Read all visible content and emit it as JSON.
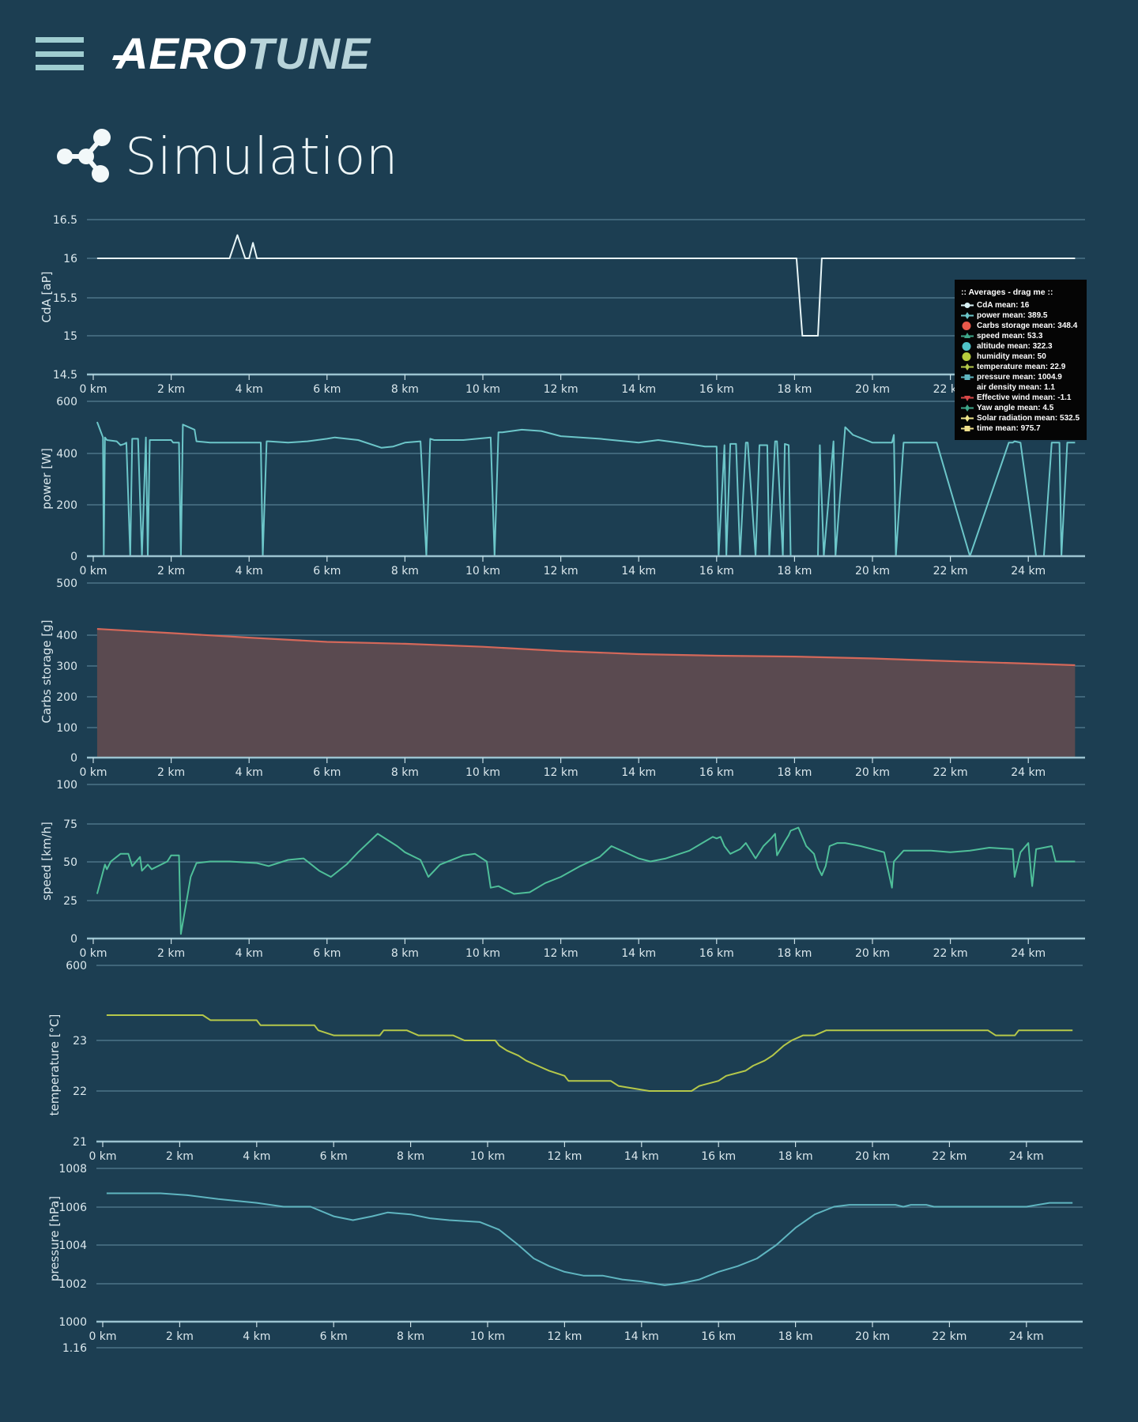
{
  "header": {
    "menu_icon": "hamburger-menu-icon",
    "logo_part1": "AERO",
    "logo_part2": "TUNE"
  },
  "page": {
    "title": "Simulation",
    "title_icon": "share-nodes-icon"
  },
  "colors": {
    "background": "#1c3e52",
    "grid": "#4d7487",
    "cda": "#e8f6f8",
    "power": "#6cc6c9",
    "carbs_line": "#d4685a",
    "carbs_fill": "#5a4a50",
    "speed": "#4fbf99",
    "temperature": "#b5c84a",
    "pressure": "#5fb5c0"
  },
  "legend": {
    "title": ":: Averages - drag me ::",
    "items": [
      {
        "label": "CdA mean: 16",
        "symbol": "line-circle",
        "color": "#d8f0f4"
      },
      {
        "label": "power mean: 389.5",
        "symbol": "line-diamond",
        "color": "#6cc6c9"
      },
      {
        "label": "Carbs storage mean: 348.4",
        "symbol": "circle",
        "color": "#e8584a"
      },
      {
        "label": "speed mean: 53.3",
        "symbol": "line-triangle",
        "color": "#3fa88a"
      },
      {
        "label": "altitude mean: 322.3",
        "symbol": "circle",
        "color": "#4fc3c8"
      },
      {
        "label": "humidity mean: 50",
        "symbol": "circle",
        "color": "#b6cc3c"
      },
      {
        "label": "temperature mean: 22.9",
        "symbol": "line-diamond",
        "color": "#b5c84a"
      },
      {
        "label": "pressure mean: 1004.9",
        "symbol": "line-square",
        "color": "#5fb5c0"
      },
      {
        "label": "air density mean: 1.1",
        "symbol": "none",
        "color": "#000000"
      },
      {
        "label": "Effective wind mean: -1.1",
        "symbol": "line-triangle-down",
        "color": "#d84848"
      },
      {
        "label": "Yaw angle mean: 4.5",
        "symbol": "line-diamond",
        "color": "#3fa88a"
      },
      {
        "label": "Solar radiation mean: 532.5",
        "symbol": "line-diamond",
        "color": "#f0e68c"
      },
      {
        "label": "time mean: 975.7",
        "symbol": "line-square",
        "color": "#f0e08c"
      }
    ]
  },
  "chart_data": [
    {
      "id": "cda",
      "type": "line",
      "ylabel": "CdA [aP]",
      "xlabel": "",
      "xticks": [
        "0 km",
        "2 km",
        "4 km",
        "6 km",
        "8 km",
        "10 km",
        "12 km",
        "14 km",
        "16 km",
        "18 km",
        "20 km",
        "22 km",
        "24 km"
      ],
      "yticks": [
        "16.5",
        "16",
        "15.5",
        "15",
        "14.5"
      ],
      "ylim": [
        14.5,
        16.5
      ],
      "x": [
        0.1,
        3.5,
        3.7,
        3.9,
        4.0,
        4.1,
        4.2,
        18.05,
        18.2,
        18.6,
        18.7,
        25.2
      ],
      "values": [
        16,
        16,
        16.3,
        16,
        16,
        16.2,
        16,
        16,
        15,
        15,
        16,
        16
      ]
    },
    {
      "id": "power",
      "type": "line",
      "ylabel": "power [W]",
      "xticks": [
        "0 km",
        "2 km",
        "4 km",
        "6 km",
        "8 km",
        "10 km",
        "12 km",
        "14 km",
        "16 km",
        "18 km",
        "20 km",
        "22 km",
        "24 km"
      ],
      "yticks": [
        "600",
        "400",
        "200",
        "0"
      ],
      "ylim": [
        0,
        600
      ],
      "x": [
        0.1,
        0.25,
        0.27,
        0.3,
        0.35,
        0.6,
        0.7,
        0.8,
        0.85,
        0.95,
        1.0,
        1.15,
        1.25,
        1.35,
        1.4,
        1.45,
        2.0,
        2.05,
        2.2,
        2.25,
        2.3,
        2.6,
        2.65,
        3.0,
        4.3,
        4.35,
        4.45,
        4.5,
        5.0,
        5.5,
        6.0,
        6.2,
        6.8,
        7.4,
        7.7,
        8.0,
        8.4,
        8.55,
        8.65,
        8.75,
        9.5,
        10.2,
        10.3,
        10.4,
        10.5,
        11.0,
        11.5,
        12.0,
        12.5,
        13.0,
        14.0,
        14.5,
        15.0,
        15.7,
        16.0,
        16.05,
        16.2,
        16.25,
        16.35,
        16.5,
        16.6,
        16.75,
        16.8,
        17.0,
        17.1,
        17.3,
        17.35,
        17.5,
        17.55,
        17.7,
        17.75,
        17.85,
        17.9,
        18.0,
        18.05,
        18.2,
        18.6,
        18.65,
        18.75,
        19.0,
        19.05,
        19.3,
        19.5,
        20.0,
        20.5,
        20.55,
        20.6,
        20.8,
        21.5,
        21.6,
        21.65,
        22.5,
        23.5,
        23.6,
        23.65,
        23.8,
        24.2,
        24.25,
        24.4,
        24.6,
        24.8,
        24.85,
        25.0,
        25.2
      ],
      "values": [
        520,
        460,
        0,
        460,
        450,
        445,
        430,
        435,
        440,
        0,
        455,
        455,
        0,
        460,
        0,
        450,
        450,
        440,
        440,
        0,
        510,
        490,
        445,
        440,
        440,
        0,
        445,
        445,
        440,
        445,
        455,
        460,
        450,
        420,
        425,
        440,
        445,
        0,
        455,
        450,
        450,
        460,
        0,
        480,
        480,
        490,
        485,
        465,
        460,
        455,
        440,
        450,
        440,
        425,
        425,
        0,
        430,
        0,
        435,
        435,
        0,
        440,
        440,
        0,
        430,
        430,
        0,
        445,
        445,
        0,
        435,
        430,
        0,
        0,
        0,
        0,
        0,
        430,
        0,
        445,
        0,
        500,
        470,
        440,
        440,
        470,
        0,
        440,
        440,
        440,
        440,
        0,
        440,
        440,
        445,
        440,
        0,
        0,
        0,
        440,
        440,
        0,
        440,
        440
      ],
      "note": "frequent drops to 0 W throughout"
    },
    {
      "id": "carbs",
      "type": "area",
      "ylabel": "Carbs storage [g]",
      "xticks": [
        "0 km",
        "2 km",
        "4 km",
        "6 km",
        "8 km",
        "10 km",
        "12 km",
        "14 km",
        "16 km",
        "18 km",
        "20 km",
        "22 km",
        "24 km"
      ],
      "yticks": [
        "500",
        "400",
        "300",
        "200",
        "100",
        "0"
      ],
      "ylim": [
        0,
        500
      ],
      "x": [
        0.1,
        2,
        4,
        6,
        8,
        10,
        12,
        14,
        16,
        18,
        20,
        22,
        24,
        25.2
      ],
      "values": [
        412,
        404,
        392,
        378,
        372,
        362,
        348,
        338,
        333,
        330,
        324,
        315,
        307,
        302
      ]
    },
    {
      "id": "speed",
      "type": "line",
      "ylabel": "speed [km/h]",
      "xticks": [
        "0 km",
        "2 km",
        "4 km",
        "6 km",
        "8 km",
        "10 km",
        "12 km",
        "14 km",
        "16 km",
        "18 km",
        "20 km",
        "22 km",
        "24 km"
      ],
      "yticks": [
        "100",
        "75",
        "50",
        "25",
        "0"
      ],
      "ylim": [
        0,
        100
      ],
      "x": [
        0.1,
        0.3,
        0.35,
        0.45,
        0.7,
        0.9,
        1.0,
        1.2,
        1.25,
        1.4,
        1.5,
        1.9,
        2.0,
        2.2,
        2.25,
        2.5,
        2.65,
        3.0,
        3.5,
        4.2,
        4.5,
        5.0,
        5.4,
        5.8,
        6.1,
        6.5,
        6.8,
        7.3,
        7.8,
        8.0,
        8.4,
        8.6,
        8.9,
        9.5,
        9.8,
        10.1,
        10.2,
        10.4,
        10.8,
        11.2,
        11.6,
        12.0,
        12.5,
        13.0,
        13.3,
        14.0,
        14.3,
        14.7,
        15.3,
        15.9,
        16.0,
        16.1,
        16.2,
        16.35,
        16.6,
        16.75,
        17.0,
        17.2,
        17.4,
        17.5,
        17.55,
        17.75,
        17.85,
        17.9,
        18.1,
        18.3,
        18.5,
        18.6,
        18.7,
        18.8,
        18.9,
        19.1,
        19.3,
        19.7,
        20.3,
        20.5,
        20.55,
        20.8,
        21.5,
        22.0,
        22.5,
        23.0,
        23.6,
        23.65,
        23.8,
        24.0,
        24.1,
        24.2,
        24.6,
        24.7,
        24.9,
        24.95,
        25.2
      ],
      "values": [
        29,
        48,
        45,
        50,
        55,
        55,
        47,
        53,
        44,
        48,
        45,
        50,
        54,
        54,
        3,
        40,
        49,
        50,
        50,
        49,
        47,
        51,
        52,
        44,
        40,
        48,
        56,
        68,
        60,
        56,
        51,
        40,
        48,
        54,
        55,
        50,
        33,
        34,
        29,
        30,
        36,
        40,
        47,
        53,
        60,
        52,
        50,
        52,
        57,
        66,
        65,
        66,
        60,
        55,
        58,
        62,
        52,
        60,
        65,
        68,
        54,
        63,
        67,
        70,
        72,
        60,
        55,
        46,
        41,
        47,
        60,
        62,
        62,
        60,
        56,
        33,
        50,
        57,
        57,
        56,
        57,
        59,
        58,
        40,
        56,
        62,
        34,
        58,
        60,
        50,
        50,
        50,
        50
      ]
    },
    {
      "id": "temperature",
      "type": "line",
      "ylabel": "temperature [°C]",
      "xticks": [
        "0 km",
        "2 km",
        "4 km",
        "6 km",
        "8 km",
        "10 km",
        "12 km",
        "14 km",
        "16 km",
        "18 km",
        "20 km",
        "22 km",
        "24 km"
      ],
      "yticks": [
        "600",
        "23",
        "22",
        "21"
      ],
      "ylim": [
        21,
        24.5
      ],
      "x": [
        0.1,
        2.6,
        2.8,
        4.0,
        4.1,
        5.5,
        5.6,
        6.0,
        7.2,
        7.3,
        7.9,
        8.2,
        9.1,
        9.4,
        10.2,
        10.3,
        10.5,
        10.8,
        11.0,
        11.3,
        11.6,
        12.0,
        12.1,
        13.2,
        13.4,
        14.2,
        14.3,
        15.3,
        15.5,
        16.0,
        16.2,
        16.7,
        16.9,
        17.2,
        17.4,
        17.7,
        17.9,
        18.2,
        18.5,
        18.8,
        19.0,
        23.0,
        23.2,
        23.7,
        23.8,
        25.2
      ],
      "values": [
        23.5,
        23.5,
        23.4,
        23.4,
        23.3,
        23.3,
        23.2,
        23.1,
        23.1,
        23.2,
        23.2,
        23.1,
        23.1,
        23.0,
        23.0,
        22.9,
        22.8,
        22.7,
        22.6,
        22.5,
        22.4,
        22.3,
        22.2,
        22.2,
        22.1,
        22.0,
        22.0,
        22.0,
        22.1,
        22.2,
        22.3,
        22.4,
        22.5,
        22.6,
        22.7,
        22.9,
        23.0,
        23.1,
        23.1,
        23.2,
        23.2,
        23.2,
        23.1,
        23.1,
        23.2,
        23.2
      ]
    },
    {
      "id": "pressure",
      "type": "line",
      "ylabel": "pressure [hPa]",
      "xticks": [
        "0 km",
        "2 km",
        "4 km",
        "6 km",
        "8 km",
        "10 km",
        "12 km",
        "14 km",
        "16 km",
        "18 km",
        "20 km",
        "22 km",
        "24 km"
      ],
      "yticks": [
        "1008",
        "1006",
        "1004",
        "1002",
        "1000",
        "1.16"
      ],
      "ylim": [
        1000,
        1008
      ],
      "x": [
        0.1,
        1.5,
        2.2,
        3.0,
        4.0,
        4.7,
        5.4,
        6.0,
        6.5,
        7.0,
        7.4,
        8.0,
        8.5,
        9.0,
        9.8,
        10.3,
        10.8,
        11.2,
        11.6,
        12.0,
        12.5,
        13.0,
        13.5,
        14.0,
        14.6,
        15.0,
        15.5,
        16.0,
        16.5,
        17.0,
        17.5,
        18.0,
        18.5,
        19.0,
        19.4,
        20.6,
        20.8,
        21.0,
        21.4,
        21.6,
        23.5,
        24.0,
        24.6,
        25.2
      ],
      "values": [
        1006.7,
        1006.7,
        1006.6,
        1006.4,
        1006.2,
        1006.0,
        1006.0,
        1005.5,
        1005.3,
        1005.5,
        1005.7,
        1005.6,
        1005.4,
        1005.3,
        1005.2,
        1004.8,
        1004.0,
        1003.3,
        1002.9,
        1002.6,
        1002.4,
        1002.4,
        1002.2,
        1002.1,
        1001.9,
        1002.0,
        1002.2,
        1002.6,
        1002.9,
        1003.3,
        1004.0,
        1004.9,
        1005.6,
        1006.0,
        1006.1,
        1006.1,
        1006.0,
        1006.1,
        1006.1,
        1006.0,
        1006.0,
        1006.0,
        1006.2,
        1006.2
      ]
    }
  ]
}
